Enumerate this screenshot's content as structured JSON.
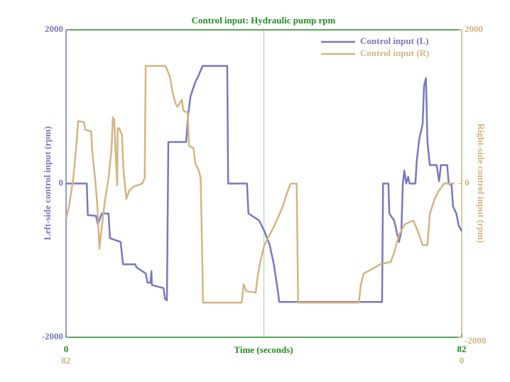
{
  "chart_data": {
    "type": "line",
    "title": "Control input: Hydraulic pump rpm",
    "x_label": "Time (seconds)",
    "y_label": "Left-side control input (rpm)",
    "y2_label": "Right-side control input (rpm)",
    "xlim": [
      0,
      82
    ],
    "xticks": [
      0,
      82
    ],
    "x2lim": [
      82,
      0
    ],
    "x2ticks": [
      82,
      0
    ],
    "ylim": [
      -2000,
      2000
    ],
    "yticks": [
      -2000,
      0,
      2000
    ],
    "y2lim": [
      -2000,
      2000
    ],
    "y2ticks": [
      -2000,
      0,
      2000
    ],
    "vline_x": 41,
    "vline_color": "#b9dcb9",
    "axis_color": "#228b22",
    "legend": "upper right",
    "series": [
      {
        "name": "Control input (L)",
        "color": "#7878c0",
        "axis": "y",
        "x": [
          0,
          4.3,
          4.5,
          6.2,
          6.6,
          7.4,
          8.8,
          9.1,
          11.3,
          11.8,
          14.3,
          14.6,
          16.5,
          16.9,
          17.5,
          17.7,
          17.8,
          20.2,
          20.5,
          20.9,
          21.2,
          24.9,
          25.3,
          25.8,
          26.8,
          27.5,
          28.3,
          33.4,
          33.6,
          37.5,
          37.8,
          40.0,
          41.1,
          42.2,
          43.0,
          43.7,
          44.2,
          65.5,
          65.7,
          66.8,
          67.0,
          68.0,
          69.0,
          69.5,
          69.8,
          70.1,
          70.5,
          70.9,
          71.2,
          72.4,
          72.7,
          73.2,
          73.9,
          74.2,
          74.6,
          74.9,
          75.4,
          76.8,
          77.3,
          77.7,
          79.0,
          79.3,
          79.9,
          80.2,
          80.9,
          81.4,
          82
        ],
        "values": [
          0,
          0,
          -410,
          -420,
          -530,
          -390,
          -390,
          -710,
          -760,
          -1050,
          -1050,
          -1090,
          -1170,
          -1290,
          -1290,
          -1140,
          -1320,
          -1360,
          -1500,
          -1520,
          540,
          540,
          900,
          1140,
          1320,
          1410,
          1530,
          1530,
          0,
          0,
          -390,
          -480,
          -620,
          -800,
          -1030,
          -1310,
          -1540,
          -1540,
          0,
          0,
          -390,
          -480,
          -760,
          -620,
          0,
          170,
          0,
          90,
          0,
          0,
          300,
          580,
          770,
          1270,
          1370,
          540,
          240,
          240,
          30,
          240,
          240,
          0,
          -20,
          -300,
          -390,
          -550,
          -620
        ]
      },
      {
        "name": "Control input (R)",
        "color": "#d4b483",
        "axis": "y2",
        "x": [
          0,
          0.6,
          1.5,
          2.2,
          2.5,
          3.7,
          4.0,
          5.2,
          5.4,
          6.0,
          6.5,
          6.9,
          7.4,
          8.1,
          8.8,
          9.4,
          9.7,
          10.0,
          10.3,
          10.6,
          10.7,
          11.0,
          11.6,
          11.9,
          12.5,
          13.1,
          14.0,
          15.8,
          16.3,
          16.5,
          20.6,
          21.1,
          21.6,
          22.1,
          22.7,
          23.1,
          24.0,
          24.3,
          25.2,
          25.5,
          26.4,
          26.8,
          27.5,
          27.9,
          28.4,
          36.4,
          36.8,
          37.4,
          39.3,
          39.6,
          40.2,
          41.1,
          42.0,
          43.0,
          44.0,
          44.9,
          45.6,
          46.4,
          46.7,
          47.8,
          48.1,
          60.7,
          61.1,
          61.7,
          62.9,
          64.3,
          65.1,
          67.3,
          68.0,
          69.0,
          70.2,
          72.0,
          73.2,
          73.9,
          74.9,
          75.4,
          76.4,
          77.3,
          78.3,
          80.5
        ],
        "values": [
          -460,
          -300,
          70,
          540,
          810,
          800,
          700,
          680,
          440,
          70,
          -300,
          -850,
          -570,
          -200,
          70,
          440,
          860,
          830,
          350,
          -20,
          720,
          720,
          630,
          170,
          -200,
          -90,
          -40,
          0,
          70,
          1530,
          1530,
          1460,
          1370,
          1180,
          1040,
          1000,
          1090,
          950,
          920,
          490,
          460,
          260,
          170,
          70,
          -1550,
          -1550,
          -1310,
          -1400,
          -1420,
          -1260,
          -1030,
          -800,
          -690,
          -570,
          -430,
          -300,
          -160,
          -20,
          0,
          0,
          -1550,
          -1550,
          -1310,
          -1170,
          -1130,
          -1080,
          -1050,
          -1020,
          -900,
          -670,
          -530,
          -480,
          -670,
          -800,
          -800,
          -390,
          -200,
          -90,
          0,
          0
        ]
      }
    ]
  }
}
